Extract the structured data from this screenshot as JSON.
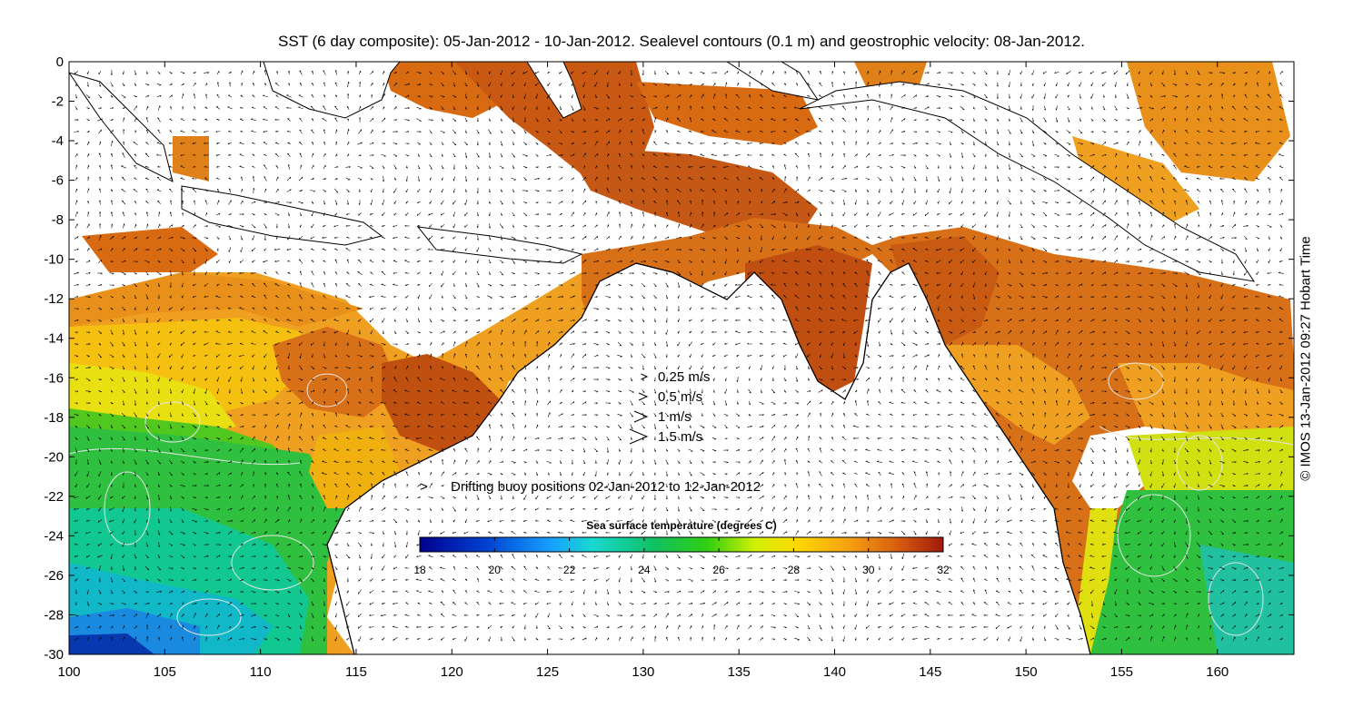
{
  "title": "SST (6 day composite): 05-Jan-2012 - 10-Jan-2012. Sealevel contours (0.1 m) and geostrophic velocity: 08-Jan-2012.",
  "credit": "© IMOS 13-Jan-2012 09:27 Hobart Time",
  "velocity_legend": [
    {
      "label": "0.25 m/s",
      "speed": 0.25
    },
    {
      "label": "0.5 m/s",
      "speed": 0.5
    },
    {
      "label": "1 m/s",
      "speed": 1
    },
    {
      "label": "1.5 m/s",
      "speed": 1.5
    }
  ],
  "buoy_legend": {
    "label": "Drifting buoy positions 02-Jan-2012 to 12-Jan-2012",
    "color": "#e020e0"
  },
  "colorbar": {
    "title": "Sea surface temperature (degrees C)",
    "min": 18,
    "max": 32,
    "ticks": [
      "18",
      "20",
      "22",
      "24",
      "26",
      "28",
      "30",
      "32"
    ]
  },
  "chart_data": {
    "type": "heatmap",
    "title": "SST (6 day composite): 05-Jan-2012 - 10-Jan-2012. Sealevel contours (0.1 m) and geostrophic velocity: 08-Jan-2012.",
    "xlabel": "",
    "ylabel": "",
    "xlim": [
      100,
      164
    ],
    "ylim": [
      -30,
      0
    ],
    "xticks": [
      "100",
      "105",
      "110",
      "115",
      "120",
      "125",
      "130",
      "135",
      "140",
      "145",
      "150",
      "155",
      "160"
    ],
    "yticks": [
      "0",
      "-2",
      "-4",
      "-6",
      "-8",
      "-10",
      "-12",
      "-14",
      "-16",
      "-18",
      "-20",
      "-22",
      "-24",
      "-26",
      "-28",
      "-30"
    ],
    "colorbar_range": [
      18,
      32
    ]
  }
}
